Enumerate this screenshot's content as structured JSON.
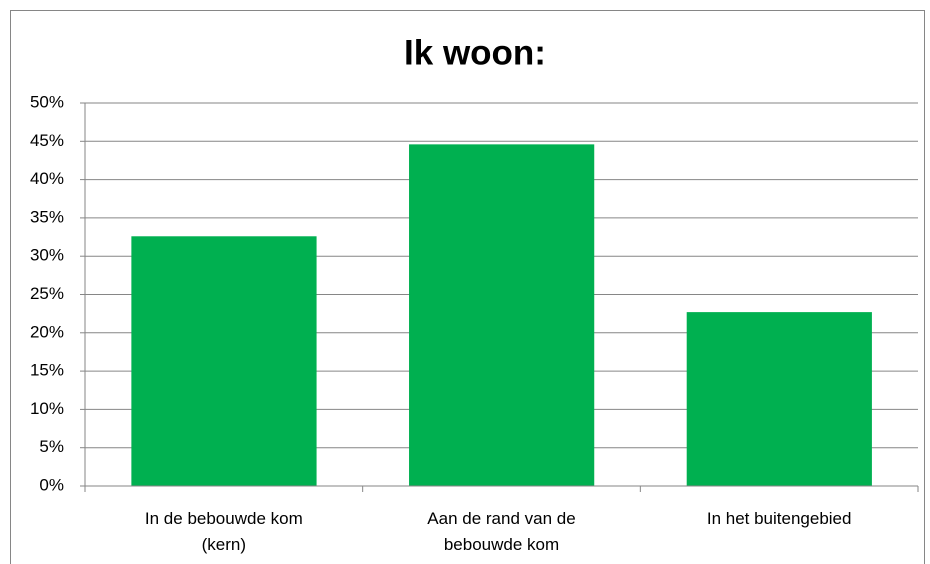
{
  "chart_data": {
    "type": "bar",
    "title": "Ik woon:",
    "categories": [
      "In de bebouwde kom (kern)",
      "Aan de rand van de bebouwde kom",
      "In het buitengebied"
    ],
    "values": [
      32.6,
      44.6,
      22.7
    ],
    "color": "#00b050",
    "ylim": [
      0,
      50
    ],
    "yticks": [
      {
        "value": 0,
        "label": "0%"
      },
      {
        "value": 5,
        "label": "5%"
      },
      {
        "value": 10,
        "label": "10%"
      },
      {
        "value": 15,
        "label": "15%"
      },
      {
        "value": 20,
        "label": "20%"
      },
      {
        "value": 25,
        "label": "25%"
      },
      {
        "value": 30,
        "label": "30%"
      },
      {
        "value": 35,
        "label": "35%"
      },
      {
        "value": 40,
        "label": "40%"
      },
      {
        "value": 45,
        "label": "45%"
      },
      {
        "value": 50,
        "label": "50%"
      }
    ],
    "grid": true
  }
}
